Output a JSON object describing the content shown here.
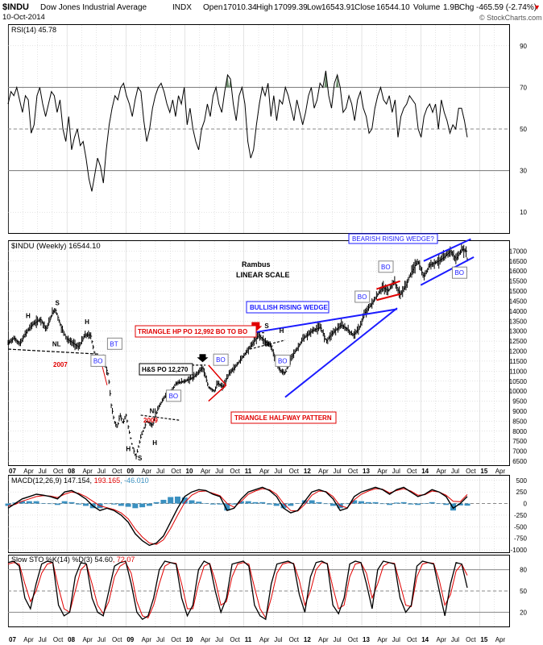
{
  "header": {
    "symbol": "$INDU",
    "name": "Dow Jones Industrial Average",
    "exchange": "INDX",
    "date": "10-Oct-2014",
    "open_label": "Open",
    "open": "17010.34",
    "high_label": "High",
    "high": "17099.39",
    "low_label": "Low",
    "low": "16543.91",
    "close_label": "Close",
    "close": "16544.10",
    "volume_label": "Volume",
    "volume": "1.9B",
    "chg_label": "Chg",
    "chg": "-465.59 (-2.74%)",
    "chg_arrow": "▼",
    "watermark": "© StockCharts.com"
  },
  "colors": {
    "blue": "#1a1aff",
    "red": "#e00000",
    "macd_hist": "#3a90c0",
    "rsi_fill": "#6a8a6a",
    "grid": "#c8c8c8"
  },
  "chart_data": [
    {
      "type": "line",
      "id": "rsi",
      "title": "RSI(14) 45.78",
      "ylim": [
        0,
        100
      ],
      "yticks": [
        10,
        30,
        50,
        70,
        90
      ],
      "reference_lines": [
        30,
        50,
        70
      ],
      "x_start": 2007.0,
      "x_end": 2015.5,
      "values": [
        62,
        68,
        66,
        70,
        64,
        58,
        66,
        64,
        48,
        52,
        66,
        70,
        62,
        56,
        62,
        68,
        66,
        58,
        64,
        50,
        44,
        56,
        40,
        46,
        50,
        42,
        44,
        36,
        26,
        20,
        28,
        36,
        32,
        24,
        40,
        52,
        60,
        66,
        64,
        70,
        72,
        66,
        62,
        56,
        64,
        70,
        68,
        54,
        44,
        50,
        60,
        66,
        70,
        72,
        68,
        62,
        58,
        64,
        56,
        66,
        62,
        70,
        52,
        60,
        50,
        44,
        40,
        50,
        54,
        62,
        56,
        66,
        70,
        62,
        58,
        68,
        76,
        74,
        62,
        54,
        66,
        70,
        62,
        44,
        36,
        40,
        52,
        62,
        70,
        66,
        72,
        56,
        66,
        54,
        64,
        62,
        70,
        66,
        60,
        54,
        64,
        58,
        52,
        58,
        66,
        70,
        60,
        64,
        72,
        70,
        78,
        66,
        60,
        72,
        76,
        70,
        58,
        60,
        66,
        62,
        54,
        64,
        68,
        60,
        56,
        48,
        50,
        60,
        66,
        70,
        64,
        62,
        66,
        58,
        64,
        46,
        56,
        60,
        62,
        66,
        64,
        62,
        50,
        46,
        56,
        60,
        62,
        58,
        62,
        50,
        64,
        58,
        54,
        48,
        52,
        50,
        60,
        60,
        54,
        46
      ],
      "ticks_labels": {
        "last": "45.78"
      }
    },
    {
      "type": "line",
      "id": "price",
      "title": "$INDU (Weekly) 16544.10",
      "ylim": [
        6300,
        17500
      ],
      "yticks": [
        6500,
        7000,
        7500,
        8000,
        8500,
        9000,
        9500,
        10000,
        10500,
        11000,
        11500,
        12000,
        12500,
        13000,
        13500,
        14000,
        14500,
        15000,
        15500,
        16000,
        16500,
        17000
      ],
      "x_start": 2007.0,
      "x_end": 2015.5,
      "points": [
        [
          2007.0,
          12400
        ],
        [
          2007.1,
          12650
        ],
        [
          2007.2,
          12350
        ],
        [
          2007.3,
          12900
        ],
        [
          2007.4,
          13300
        ],
        [
          2007.55,
          13600
        ],
        [
          2007.65,
          13100
        ],
        [
          2007.75,
          13900
        ],
        [
          2007.8,
          14100
        ],
        [
          2007.9,
          13200
        ],
        [
          2008.0,
          12600
        ],
        [
          2008.1,
          12400
        ],
        [
          2008.2,
          12200
        ],
        [
          2008.3,
          12800
        ],
        [
          2008.4,
          12800
        ],
        [
          2008.5,
          11400
        ],
        [
          2008.6,
          11700
        ],
        [
          2008.7,
          10800
        ],
        [
          2008.75,
          9300
        ],
        [
          2008.8,
          8500
        ],
        [
          2008.85,
          8200
        ],
        [
          2008.9,
          8800
        ],
        [
          2008.95,
          8400
        ],
        [
          2009.0,
          8800
        ],
        [
          2009.1,
          7300
        ],
        [
          2009.17,
          6700
        ],
        [
          2009.25,
          7700
        ],
        [
          2009.35,
          8500
        ],
        [
          2009.45,
          8300
        ],
        [
          2009.55,
          9200
        ],
        [
          2009.65,
          9700
        ],
        [
          2009.75,
          9900
        ],
        [
          2009.85,
          10400
        ],
        [
          2010.0,
          10500
        ],
        [
          2010.15,
          10700
        ],
        [
          2010.3,
          11200
        ],
        [
          2010.4,
          10200
        ],
        [
          2010.5,
          10000
        ],
        [
          2010.55,
          10400
        ],
        [
          2010.65,
          10200
        ],
        [
          2010.75,
          10900
        ],
        [
          2010.85,
          11200
        ],
        [
          2010.95,
          11600
        ],
        [
          2011.1,
          12200
        ],
        [
          2011.25,
          12800
        ],
        [
          2011.35,
          12500
        ],
        [
          2011.45,
          12300
        ],
        [
          2011.55,
          11500
        ],
        [
          2011.62,
          11000
        ],
        [
          2011.7,
          10900
        ],
        [
          2011.8,
          11700
        ],
        [
          2011.9,
          12100
        ],
        [
          2012.0,
          12600
        ],
        [
          2012.15,
          13000
        ],
        [
          2012.3,
          13200
        ],
        [
          2012.4,
          12500
        ],
        [
          2012.5,
          12900
        ],
        [
          2012.65,
          13300
        ],
        [
          2012.75,
          13100
        ],
        [
          2012.85,
          12800
        ],
        [
          2012.95,
          13100
        ],
        [
          2013.05,
          13900
        ],
        [
          2013.2,
          14500
        ],
        [
          2013.35,
          15200
        ],
        [
          2013.45,
          15000
        ],
        [
          2013.55,
          15500
        ],
        [
          2013.65,
          14800
        ],
        [
          2013.75,
          15300
        ],
        [
          2013.85,
          16000
        ],
        [
          2013.95,
          16500
        ],
        [
          2014.05,
          15700
        ],
        [
          2014.15,
          16300
        ],
        [
          2014.3,
          16500
        ],
        [
          2014.4,
          16700
        ],
        [
          2014.5,
          17000
        ],
        [
          2014.6,
          16600
        ],
        [
          2014.7,
          17100
        ],
        [
          2014.77,
          17000
        ],
        [
          2014.79,
          16544
        ]
      ],
      "annotations": [
        {
          "text": "Rambus",
          "kind": "label"
        },
        {
          "text": "LINEAR SCALE",
          "kind": "label"
        },
        {
          "text": "BEARISH RISING WEDGE?",
          "kind": "box-blue"
        },
        {
          "text": "BULLISH RISING WEDGE",
          "kind": "box-blue"
        },
        {
          "text": "TRIANGLE HP PO 12,992 BO TO BO",
          "kind": "box-red"
        },
        {
          "text": "H&S PO 12,270",
          "kind": "box-black"
        },
        {
          "text": "TRIANGLE HALFWAY PATTERN",
          "kind": "box-red"
        },
        {
          "text": "2007",
          "kind": "year-red"
        },
        {
          "text": "2009",
          "kind": "year-red"
        },
        {
          "text": "BO",
          "kind": "bo"
        },
        {
          "text": "BT",
          "kind": "bo"
        },
        {
          "text": "H",
          "kind": "hs"
        },
        {
          "text": "S",
          "kind": "hs"
        },
        {
          "text": "NL",
          "kind": "hs"
        }
      ]
    },
    {
      "type": "line",
      "id": "macd",
      "title": "MACD(12,26,9) 147.154, 193.165, -46.010",
      "title_parts": [
        "MACD(12,26,9) 147.154, ",
        "193.165",
        ", -46.010"
      ],
      "ylim": [
        -1050,
        600
      ],
      "yticks": [
        -1000,
        -750,
        -500,
        -250,
        0,
        250,
        500
      ],
      "macd": [
        -100,
        0,
        100,
        150,
        200,
        180,
        150,
        100,
        250,
        280,
        200,
        100,
        -50,
        -150,
        -100,
        -150,
        -250,
        -400,
        -650,
        -800,
        -900,
        -850,
        -700,
        -400,
        -100,
        150,
        250,
        300,
        280,
        200,
        150,
        -150,
        -100,
        100,
        250,
        300,
        350,
        280,
        150,
        -100,
        -200,
        -150,
        50,
        250,
        300,
        250,
        100,
        -150,
        -100,
        150,
        250,
        300,
        350,
        300,
        200,
        300,
        350,
        250,
        150,
        200,
        300,
        250,
        150,
        -100,
        0,
        150
      ],
      "signal": [
        -50,
        -20,
        50,
        100,
        150,
        170,
        160,
        130,
        200,
        250,
        220,
        150,
        50,
        -50,
        -90,
        -130,
        -200,
        -330,
        -550,
        -720,
        -850,
        -880,
        -780,
        -540,
        -250,
        20,
        180,
        260,
        270,
        220,
        170,
        0,
        -80,
        50,
        200,
        270,
        320,
        300,
        200,
        0,
        -150,
        -160,
        -20,
        180,
        270,
        260,
        150,
        -50,
        -90,
        80,
        200,
        270,
        320,
        310,
        230,
        280,
        320,
        270,
        180,
        190,
        270,
        250,
        180,
        50,
        40,
        193
      ],
      "histogram": [
        -50,
        20,
        50,
        50,
        50,
        10,
        -10,
        -30,
        50,
        30,
        -20,
        -50,
        -100,
        -100,
        -10,
        -20,
        -50,
        -70,
        -100,
        -80,
        -50,
        30,
        80,
        140,
        150,
        130,
        70,
        40,
        10,
        -20,
        -20,
        -150,
        -20,
        50,
        50,
        30,
        30,
        -20,
        -50,
        -100,
        -50,
        10,
        70,
        70,
        30,
        -10,
        -50,
        -100,
        -10,
        70,
        50,
        30,
        30,
        -10,
        -30,
        20,
        30,
        -20,
        -30,
        10,
        30,
        0,
        -30,
        -150,
        -40,
        -46
      ],
      "values_shown": {
        "macd": "147.154",
        "signal": "193.165",
        "histogram": "-46.010"
      }
    },
    {
      "type": "line",
      "id": "sto",
      "title": "Slow STO %K(14) %D(3) 54.60, 72.07",
      "title_parts": [
        "Slow STO %K(14) %D(3) ",
        "54.60",
        ", 72.07"
      ],
      "ylim": [
        0,
        100
      ],
      "yticks": [
        20,
        50,
        80
      ],
      "k": [
        90,
        92,
        85,
        40,
        25,
        60,
        88,
        92,
        90,
        30,
        15,
        20,
        70,
        90,
        88,
        40,
        20,
        15,
        50,
        85,
        90,
        92,
        60,
        20,
        10,
        15,
        40,
        80,
        92,
        90,
        88,
        40,
        15,
        30,
        80,
        92,
        88,
        50,
        20,
        40,
        88,
        90,
        92,
        85,
        30,
        15,
        10,
        60,
        88,
        90,
        92,
        88,
        45,
        20,
        70,
        90,
        92,
        88,
        30,
        18,
        40,
        88,
        92,
        90,
        60,
        25,
        80,
        92,
        90,
        88,
        40,
        20,
        30,
        85,
        92,
        90,
        88,
        50,
        15,
        60,
        90,
        88,
        54.6
      ],
      "d": [
        88,
        90,
        88,
        60,
        35,
        50,
        75,
        88,
        90,
        55,
        25,
        20,
        50,
        80,
        88,
        60,
        30,
        18,
        35,
        70,
        85,
        90,
        75,
        35,
        15,
        12,
        30,
        60,
        85,
        90,
        89,
        60,
        25,
        25,
        60,
        85,
        89,
        65,
        30,
        35,
        70,
        88,
        90,
        88,
        55,
        25,
        12,
        40,
        75,
        88,
        90,
        89,
        65,
        30,
        50,
        80,
        90,
        89,
        55,
        25,
        30,
        70,
        88,
        90,
        75,
        40,
        60,
        85,
        90,
        89,
        60,
        30,
        28,
        70,
        88,
        90,
        89,
        65,
        30,
        45,
        78,
        88,
        72.07
      ],
      "values_shown": {
        "k": "54.60",
        "d": "72.07"
      }
    }
  ],
  "x_axis": {
    "labels_top": [
      "07",
      "Apr",
      "Jul",
      "Oct",
      "08",
      "Apr",
      "Jul",
      "Oct",
      "09",
      "Apr",
      "Jul",
      "Oct",
      "10",
      "Apr",
      "Jul",
      "Oct",
      "11",
      "Apr",
      "Jul",
      "Oct",
      "12",
      "Apr",
      "Jul",
      "Oct",
      "13",
      "Apr",
      "Jul",
      "Oct",
      "14",
      "Apr",
      "Jul",
      "Oct",
      "15",
      "Apr"
    ],
    "labels_bottom": [
      "07",
      "Apr",
      "Jul",
      "Oct",
      "08",
      "Apr",
      "Jul",
      "Oct",
      "09",
      "Apr",
      "Jul",
      "Oct",
      "10",
      "Apr",
      "Jul",
      "Oct",
      "11",
      "Apr",
      "Jul",
      "Oct",
      "12",
      "Apr",
      "Jul",
      "Oct",
      "13",
      "Apr",
      "Jul",
      "Oct",
      "14",
      "Apr",
      "Jul",
      "Oct",
      "15",
      "Apr"
    ]
  }
}
